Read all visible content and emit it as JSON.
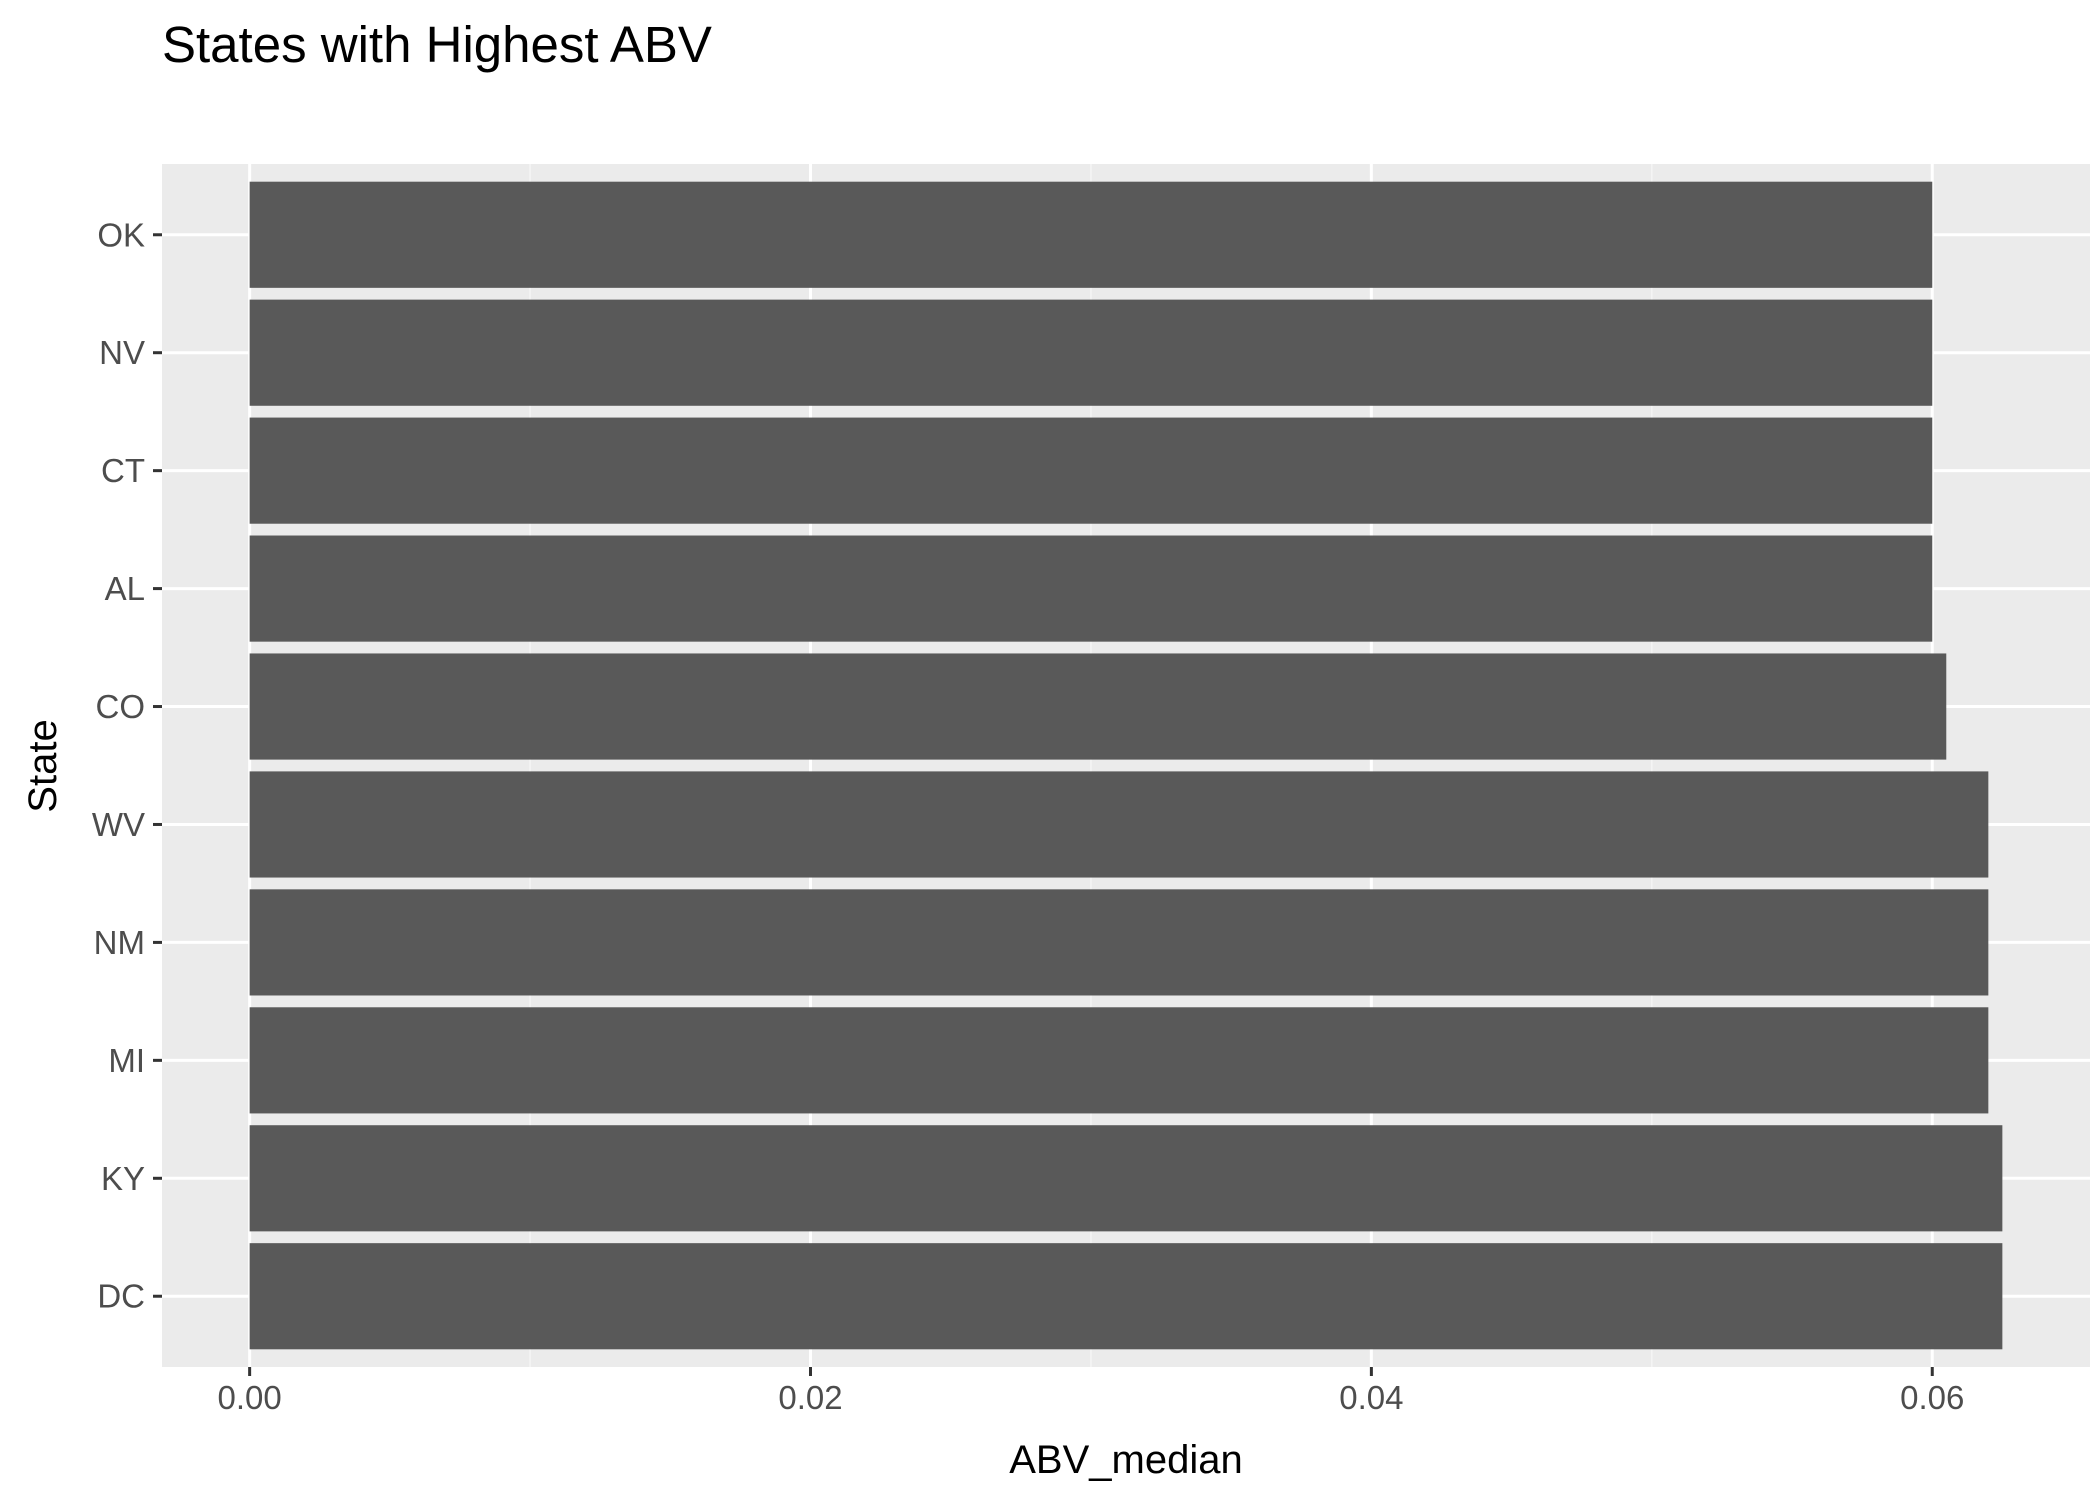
{
  "chart_data": {
    "type": "bar",
    "orientation": "horizontal",
    "title": "States with Highest ABV",
    "xlabel": "ABV_median",
    "ylabel": "State",
    "categories": [
      "OK",
      "NV",
      "CT",
      "AL",
      "CO",
      "WV",
      "NM",
      "MI",
      "KY",
      "DC"
    ],
    "values": [
      0.06,
      0.06,
      0.06,
      0.06,
      0.0605,
      0.062,
      0.062,
      0.062,
      0.0625,
      0.0625
    ],
    "xlim": [
      -0.003125,
      0.065625
    ],
    "x_ticks": [
      0.0,
      0.02,
      0.04,
      0.06
    ],
    "x_tick_labels": [
      "0.00",
      "0.02",
      "0.04",
      "0.06"
    ],
    "grid": true,
    "colors": {
      "bar": "#595959",
      "panel": "#ebebeb",
      "grid_major": "#ffffff",
      "grid_minor": "#f5f5f5",
      "tick_text": "#4d4d4d",
      "tick_mark": "#333333"
    }
  }
}
